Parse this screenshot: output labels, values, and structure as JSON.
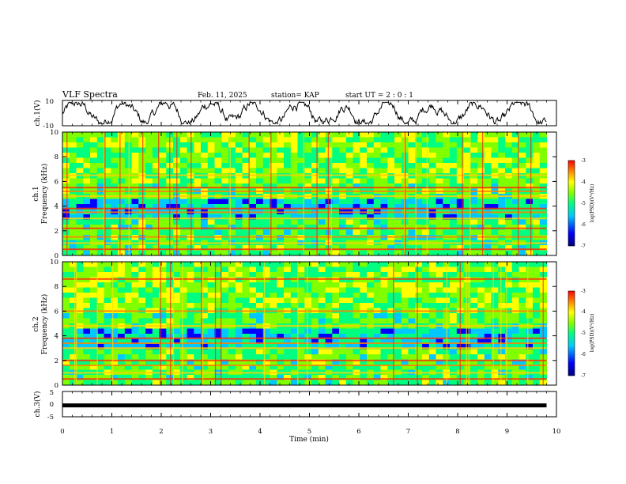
{
  "header": {
    "title": "VLF Spectra",
    "date": "Feb. 11, 2025",
    "station": "station= KAP",
    "start": "start  UT =   2 : 0  : 1"
  },
  "chart_data": [
    {
      "type": "line",
      "name": "ch1-waveform",
      "ylabel": "ch.1(V)",
      "ylim": [
        -10,
        10
      ],
      "yticks": [
        "10",
        "-10"
      ],
      "x_range_min": [
        0,
        9.8
      ]
    },
    {
      "type": "heatmap",
      "name": "ch1-spectrogram",
      "ylabel_top": "ch.1",
      "ylabel": "Frequency (kHz)",
      "ylim": [
        0,
        10
      ],
      "yticks": [
        "0",
        "2",
        "4",
        "6",
        "8",
        "10"
      ],
      "bands_khz": [
        0.5,
        1.0,
        1.5,
        2.2,
        3.0,
        3.5,
        3.8,
        4.8,
        5.2,
        5.5,
        6.5
      ],
      "colorbar": {
        "label": "log(PSD)(V²/Hz)",
        "range": [
          -7,
          -3
        ],
        "ticks": [
          "-3",
          "-4",
          "-5",
          "-6",
          "-7"
        ]
      }
    },
    {
      "type": "heatmap",
      "name": "ch2-spectrogram",
      "ylabel_top": "ch.2",
      "ylabel": "Frequency (kHz)",
      "ylim": [
        0,
        10
      ],
      "yticks": [
        "0",
        "2",
        "4",
        "6",
        "8",
        "10"
      ],
      "bands_khz": [
        0.5,
        1.0,
        1.6,
        2.0,
        3.0,
        3.4,
        3.8,
        4.8,
        6.0,
        8.6
      ],
      "colorbar": {
        "label": "log(PSD)(V²/Hz)",
        "range": [
          -7,
          -3
        ],
        "ticks": [
          "-3",
          "-4",
          "-5",
          "-6",
          "-7"
        ]
      }
    },
    {
      "type": "line",
      "name": "ch3-waveform",
      "ylabel": "ch.3(V)",
      "ylim": [
        -5,
        5
      ],
      "yticks": [
        "5",
        "0",
        "-5"
      ],
      "level_v": -0.5
    }
  ],
  "xaxis": {
    "label": "Time  (min)",
    "range": [
      0,
      10
    ],
    "ticks": [
      "0",
      "1",
      "2",
      "3",
      "4",
      "5",
      "6",
      "7",
      "8",
      "9",
      "10"
    ]
  },
  "colors": {
    "line": "#000000",
    "cmap": [
      "#00007f",
      "#0000ff",
      "#00c8ff",
      "#00ff80",
      "#80ff00",
      "#ffff00",
      "#ff8000",
      "#ff0000"
    ]
  }
}
